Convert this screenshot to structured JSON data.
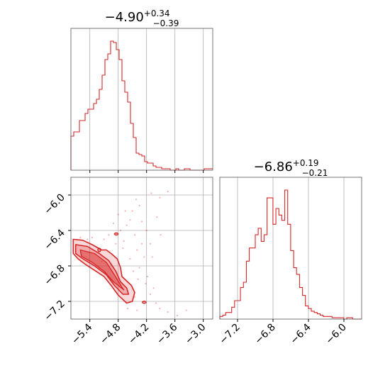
{
  "chart_data": {
    "type": "corner",
    "color": "#d62728",
    "grid": true,
    "params": [
      {
        "title": {
          "median": "−4.90",
          "plus": "+0.34",
          "minus": "−0.39"
        },
        "range": [
          -5.8,
          -2.8
        ],
        "ticks": [
          -5.4,
          -4.8,
          -4.2,
          -3.6,
          -3.0
        ],
        "tick_labels": [
          "−5.4",
          "−4.8",
          "−4.2",
          "−3.6",
          "−3.0"
        ],
        "hist": {
          "bin_start": -5.8,
          "bin_width": 0.06,
          "counts": [
            0.24,
            0.27,
            0.27,
            0.35,
            0.35,
            0.4,
            0.43,
            0.43,
            0.47,
            0.5,
            0.57,
            0.67,
            0.78,
            0.82,
            0.91,
            0.9,
            0.85,
            0.78,
            0.63,
            0.55,
            0.48,
            0.33,
            0.23,
            0.12,
            0.11,
            0.1,
            0.06,
            0.05,
            0.05,
            0.03,
            0.02,
            0.02,
            0.01,
            0.01,
            0.01,
            0.0,
            0.0,
            0.01,
            0.0,
            0.0,
            0.01,
            0.01,
            0.0,
            0.0,
            0.0,
            0.0,
            0.0,
            0.01,
            0.01,
            0.01
          ]
        }
      },
      {
        "title": {
          "median": "−6.86",
          "plus": "+0.19",
          "minus": "−0.21"
        },
        "range": [
          -7.4,
          -5.8
        ],
        "ticks": [
          -7.2,
          -6.8,
          -6.4,
          -6.0
        ],
        "tick_labels": [
          "−7.2",
          "−6.8",
          "−6.4",
          "−6.0"
        ],
        "hist": {
          "bin_start": -7.4,
          "bin_width": 0.0333,
          "counts": [
            0.02,
            0.03,
            0.05,
            0.05,
            0.09,
            0.14,
            0.14,
            0.24,
            0.28,
            0.44,
            0.54,
            0.54,
            0.64,
            0.69,
            0.59,
            0.64,
            0.92,
            0.92,
            0.72,
            0.84,
            0.79,
            0.75,
            0.98,
            0.72,
            0.52,
            0.39,
            0.34,
            0.24,
            0.18,
            0.1,
            0.08,
            0.06,
            0.05,
            0.04,
            0.03,
            0.02,
            0.02,
            0.02,
            0.01,
            0.01,
            0.01,
            0.01,
            0.0,
            0.01,
            0.01,
            0.0,
            0.0,
            0.0
          ]
        }
      }
    ],
    "joint": {
      "y_ticks": [
        -6.0,
        -6.4,
        -6.8,
        -7.2
      ],
      "y_tick_labels": [
        "−6.0",
        "−6.4",
        "−6.8",
        "−7.2"
      ],
      "contour_outer": [
        [
          -5.75,
          -6.5
        ],
        [
          -5.55,
          -6.51
        ],
        [
          -5.35,
          -6.56
        ],
        [
          -5.15,
          -6.62
        ],
        [
          -5.05,
          -6.62
        ],
        [
          -4.95,
          -6.66
        ],
        [
          -4.82,
          -6.72
        ],
        [
          -4.75,
          -6.82
        ],
        [
          -4.72,
          -6.92
        ],
        [
          -4.6,
          -6.98
        ],
        [
          -4.52,
          -7.02
        ],
        [
          -4.45,
          -7.1
        ],
        [
          -4.5,
          -7.2
        ],
        [
          -4.62,
          -7.22
        ],
        [
          -4.8,
          -7.13
        ],
        [
          -4.95,
          -7.02
        ],
        [
          -5.1,
          -6.92
        ],
        [
          -5.3,
          -6.85
        ],
        [
          -5.5,
          -6.78
        ],
        [
          -5.65,
          -6.72
        ],
        [
          -5.75,
          -6.66
        ]
      ],
      "contour_inner": [
        [
          -5.7,
          -6.56
        ],
        [
          -5.45,
          -6.58
        ],
        [
          -5.2,
          -6.66
        ],
        [
          -5.0,
          -6.74
        ],
        [
          -4.85,
          -6.86
        ],
        [
          -4.75,
          -6.98
        ],
        [
          -4.62,
          -7.05
        ],
        [
          -4.58,
          -7.12
        ],
        [
          -4.7,
          -7.12
        ],
        [
          -4.88,
          -7.02
        ],
        [
          -5.05,
          -6.9
        ],
        [
          -5.3,
          -6.8
        ],
        [
          -5.55,
          -6.72
        ],
        [
          -5.7,
          -6.66
        ]
      ],
      "contour_core": [
        [
          -5.6,
          -6.62
        ],
        [
          -5.3,
          -6.66
        ],
        [
          -5.05,
          -6.76
        ],
        [
          -4.88,
          -6.9
        ],
        [
          -4.72,
          -7.04
        ],
        [
          -4.68,
          -7.07
        ],
        [
          -4.9,
          -6.98
        ],
        [
          -5.1,
          -6.86
        ],
        [
          -5.35,
          -6.76
        ],
        [
          -5.58,
          -6.69
        ]
      ],
      "islands": [
        {
          "x": -4.84,
          "y": -6.44,
          "rx": 0.04,
          "ry": 0.012
        },
        {
          "x": -5.2,
          "y": -6.62,
          "rx": 0.03,
          "ry": 0.02
        },
        {
          "x": -4.25,
          "y": -7.21,
          "rx": 0.04,
          "ry": 0.012
        }
      ],
      "points": [
        [
          -4.02,
          -5.75
        ],
        [
          -3.86,
          -5.72
        ],
        [
          -3.75,
          -5.96
        ],
        [
          -3.92,
          -6.03
        ],
        [
          -4.1,
          -5.98
        ],
        [
          -4.35,
          -6.12
        ],
        [
          -4.3,
          -6.3
        ],
        [
          -4.42,
          -6.05
        ],
        [
          -4.55,
          -6.28
        ],
        [
          -4.62,
          -6.34
        ],
        [
          -4.75,
          -6.4
        ],
        [
          -4.9,
          -6.32
        ],
        [
          -4.68,
          -6.52
        ],
        [
          -4.45,
          -6.45
        ],
        [
          -4.2,
          -6.4
        ],
        [
          -4.12,
          -6.55
        ],
        [
          -4.25,
          -6.7
        ],
        [
          -4.4,
          -6.62
        ],
        [
          -4.55,
          -6.72
        ],
        [
          -4.35,
          -6.82
        ],
        [
          -4.18,
          -6.92
        ],
        [
          -4.05,
          -7.05
        ],
        [
          -4.22,
          -7.0
        ],
        [
          -4.38,
          -6.95
        ],
        [
          -4.12,
          -7.12
        ],
        [
          -4.0,
          -7.22
        ],
        [
          -3.92,
          -7.28
        ],
        [
          -3.75,
          -7.32
        ],
        [
          -3.55,
          -7.36
        ],
        [
          -3.36,
          -7.3
        ],
        [
          -4.45,
          -7.15
        ],
        [
          -4.6,
          -7.28
        ],
        [
          -4.4,
          -7.3
        ],
        [
          -4.7,
          -6.6
        ],
        [
          -4.85,
          -6.55
        ],
        [
          -5.0,
          -6.45
        ],
        [
          -5.1,
          -6.5
        ],
        [
          -4.95,
          -6.78
        ],
        [
          -5.15,
          -6.75
        ],
        [
          -5.35,
          -6.48
        ],
        [
          -5.45,
          -6.5
        ],
        [
          -5.6,
          -6.48
        ],
        [
          -4.5,
          -6.18
        ],
        [
          -4.65,
          -6.18
        ],
        [
          -4.8,
          -6.22
        ],
        [
          -3.98,
          -6.25
        ],
        [
          -3.9,
          -6.45
        ],
        [
          -4.08,
          -6.7
        ],
        [
          -4.3,
          -6.55
        ],
        [
          -4.48,
          -6.86
        ]
      ]
    }
  }
}
